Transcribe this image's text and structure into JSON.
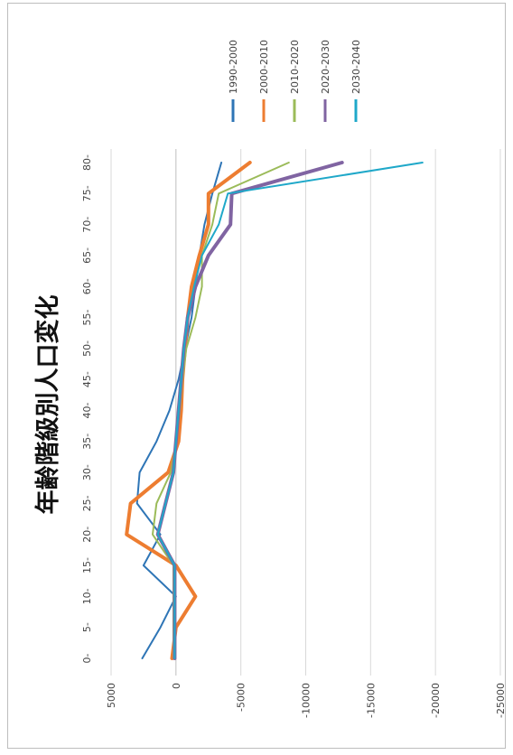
{
  "chart_data": {
    "type": "line",
    "title": "年齢階級別人口変化",
    "x_tick_labels": [
      "0-",
      "5-",
      "10-",
      "15-",
      "20-",
      "25-",
      "30-",
      "35-",
      "40-",
      "45-",
      "50-",
      "55-",
      "60-",
      "65-",
      "70-",
      "75-",
      "80-"
    ],
    "y_tick_values": [
      5000,
      0,
      -5000,
      -10000,
      -15000,
      -20000,
      -25000
    ],
    "y_tick_labels": [
      "5000",
      "0",
      "-5000",
      "-10000",
      "-15000",
      "-20000",
      "-25000"
    ],
    "ylim": [
      -25000,
      5000
    ],
    "grid": true,
    "legend_position": "top",
    "series": [
      {
        "name": "1990-2000",
        "color": "#2e75b6",
        "width": 2,
        "values": [
          2600,
          1200,
          0,
          2500,
          1200,
          3000,
          2800,
          1500,
          500,
          -200,
          -700,
          -1200,
          -1500,
          -1800,
          -2200,
          -2800,
          -3500
        ]
      },
      {
        "name": "2000-2010",
        "color": "#ed7d31",
        "width": 4,
        "values": [
          300,
          0,
          -1500,
          0,
          3800,
          3500,
          600,
          -200,
          -400,
          -500,
          -700,
          -900,
          -1200,
          -1800,
          -2500,
          -2500,
          -5700
        ]
      },
      {
        "name": "2010-2020",
        "color": "#9bbb59",
        "width": 2,
        "values": [
          200,
          200,
          200,
          200,
          1800,
          1500,
          400,
          0,
          -300,
          -500,
          -800,
          -1500,
          -2000,
          -2000,
          -2800,
          -3300,
          -8700
        ]
      },
      {
        "name": "2020-2030",
        "color": "#8064a2",
        "width": 4,
        "values": [
          100,
          100,
          100,
          100,
          1400,
          800,
          200,
          0,
          -200,
          -400,
          -600,
          -900,
          -1500,
          -2500,
          -4200,
          -4300,
          -12800
        ]
      },
      {
        "name": "2030-2040",
        "color": "#1fa8c9",
        "width": 2,
        "values": [
          100,
          100,
          100,
          100,
          1400,
          800,
          200,
          0,
          -200,
          -400,
          -600,
          -900,
          -1400,
          -2000,
          -3300,
          -4000,
          -19000
        ]
      }
    ]
  }
}
